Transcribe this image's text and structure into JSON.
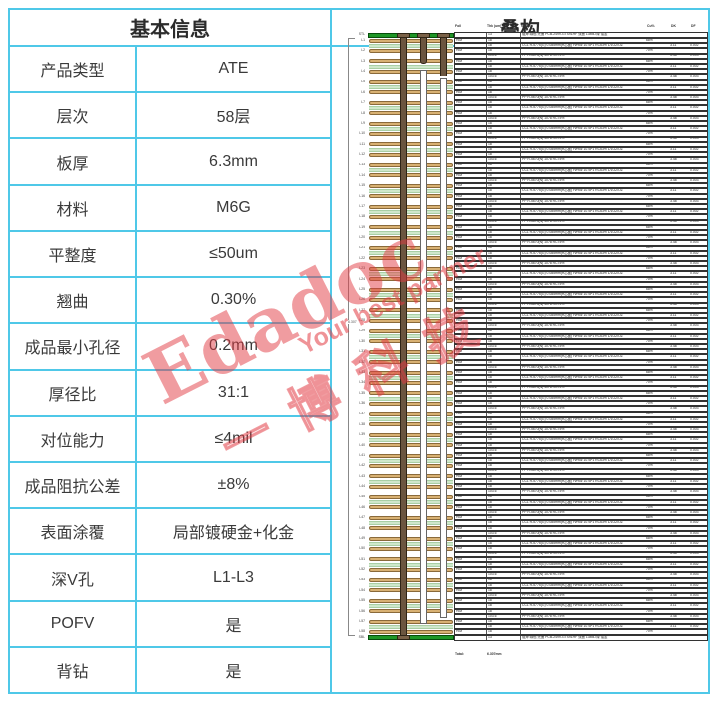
{
  "page": {
    "border_color": "#4fc8e8",
    "watermark_color": "#e23a42"
  },
  "basic_info": {
    "title": "基本信息",
    "rows": [
      {
        "label": "产品类型",
        "value": "ATE"
      },
      {
        "label": "层次",
        "value": "58层"
      },
      {
        "label": "板厚",
        "value": "6.3mm"
      },
      {
        "label": "材料",
        "value": "M6G"
      },
      {
        "label": "平整度",
        "value": "≤50um"
      },
      {
        "label": "翘曲",
        "value": "0.30%"
      },
      {
        "label": "成品最小孔径",
        "value": "0.2mm"
      },
      {
        "label": "厚径比",
        "value": "31:1"
      },
      {
        "label": "对位能力",
        "value": "≤4mil"
      },
      {
        "label": "成品阻抗公差",
        "value": "±8%"
      },
      {
        "label": "表面涂覆",
        "value": "局部镀硬金+化金"
      },
      {
        "label": "深V孔",
        "value": "L1-L3"
      },
      {
        "label": "POFV",
        "value": "是"
      },
      {
        "label": "背钻",
        "value": "是"
      }
    ]
  },
  "stackup": {
    "title": "叠构",
    "layer_count": 58,
    "columns": {
      "foil": "Foil",
      "thk": "Thk (um)",
      "name": "Name",
      "cu": "Cu%",
      "dk": "DK",
      "df": "DF"
    },
    "labels": {
      "top": "STL",
      "bottom": "SBL",
      "layer_prefix": "L",
      "thickness_note": "6.307"
    },
    "soldermask": {
      "thk": "13",
      "name": "阻焊:绿色:光面 PCB-2499-GTS91HF 双面 13MIL/绿 油墨"
    },
    "copper": {
      "foil": "Hoz",
      "thk": "18",
      "cu_odd": "68%",
      "cu_even": "70%"
    },
    "core": {
      "thk": "18",
      "name": "CCL R-5775(G) 0.085mm(H芯板) H/Hoz 1078*1 RC63% 1/1OZ/OZ",
      "dk": "3.11",
      "df": "0.002"
    },
    "pp": {
      "thk": "103.6",
      "name": "PP R-5670(N) 1078 RC75%",
      "dk": "3.48",
      "df": "0.003"
    },
    "total": {
      "label": "Total:",
      "value": "6.307mm"
    }
  },
  "watermark": {
    "brand": "Edadoc",
    "tagline": "Your best partner",
    "cn": "一博科技"
  }
}
